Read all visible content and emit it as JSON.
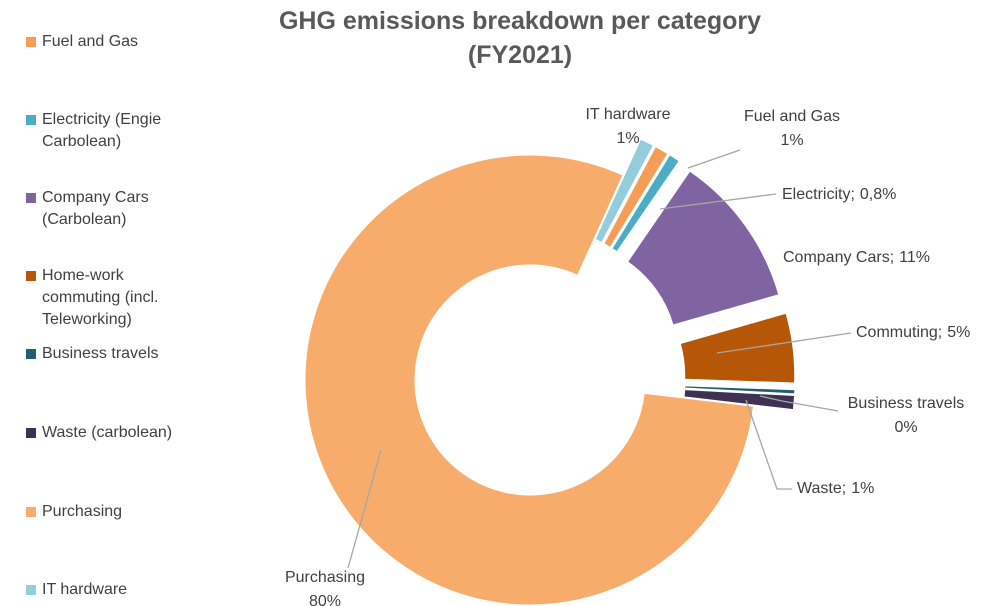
{
  "chart_data": {
    "type": "donut",
    "title": "GHG emissions breakdown per category (FY2021)",
    "categories": [
      "Fuel and Gas",
      "Electricity (Engie Carbolean)",
      "Company Cars (Carbolean)",
      "Home-work commuting (incl. Teleworking)",
      "Business travels",
      "Waste (carbolean)",
      "Purchasing",
      "IT hardware"
    ],
    "values": [
      1,
      0.8,
      11,
      5,
      0.3,
      1,
      80,
      1
    ],
    "value_labels": [
      "1%",
      "0,8%",
      "11%",
      "5%",
      "0%",
      "1%",
      "80%",
      "1%"
    ],
    "label_names": [
      "Fuel and Gas",
      "Electricity;",
      "Company Cars;",
      "Commuting;",
      "Business travels",
      "Waste;",
      "Purchasing",
      "IT hardware"
    ],
    "colors": [
      "#f59d56",
      "#4bacc6",
      "#8064a2",
      "#b65708",
      "#215f70",
      "#3f3151",
      "#f8ac6b",
      "#93cddd"
    ],
    "legend": "left"
  }
}
